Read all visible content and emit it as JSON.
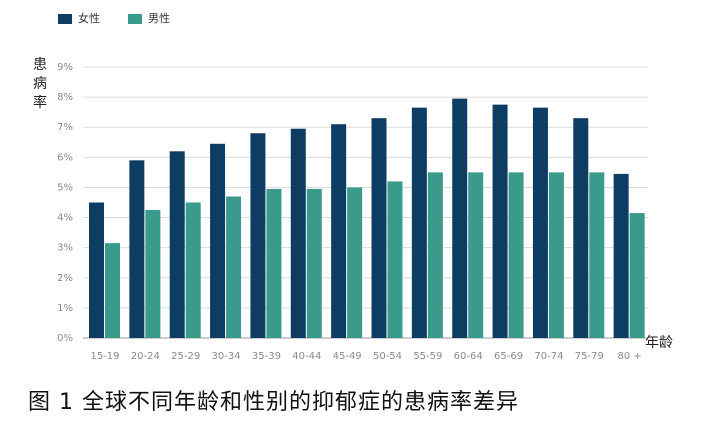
{
  "caption": "图 1 全球不同年龄和性别的抑郁症的患病率差异",
  "chart_data": {
    "type": "bar",
    "title": "",
    "xlabel": "年龄",
    "ylabel": "患病率",
    "ylim": [
      0,
      9
    ],
    "yticks": [
      "0%",
      "1%",
      "2%",
      "3%",
      "4%",
      "5%",
      "6%",
      "7%",
      "8%",
      "9%"
    ],
    "grid": true,
    "legend": "top-left",
    "categories": [
      "15-19",
      "20-24",
      "25-29",
      "30-34",
      "35-39",
      "40-44",
      "45-49",
      "50-54",
      "55-59",
      "60-64",
      "65-69",
      "70-74",
      "75-79",
      "80 +"
    ],
    "series": [
      {
        "name": "女性",
        "color": "#0d3d63",
        "values": [
          4.5,
          5.9,
          6.2,
          6.45,
          6.8,
          6.95,
          7.1,
          7.3,
          7.65,
          7.95,
          7.75,
          7.65,
          7.3,
          5.45
        ]
      },
      {
        "name": "男性",
        "color": "#3a9a8c",
        "values": [
          3.15,
          4.25,
          4.5,
          4.7,
          4.95,
          4.95,
          5.0,
          5.2,
          5.5,
          5.5,
          5.5,
          5.5,
          5.5,
          4.15
        ]
      }
    ]
  }
}
